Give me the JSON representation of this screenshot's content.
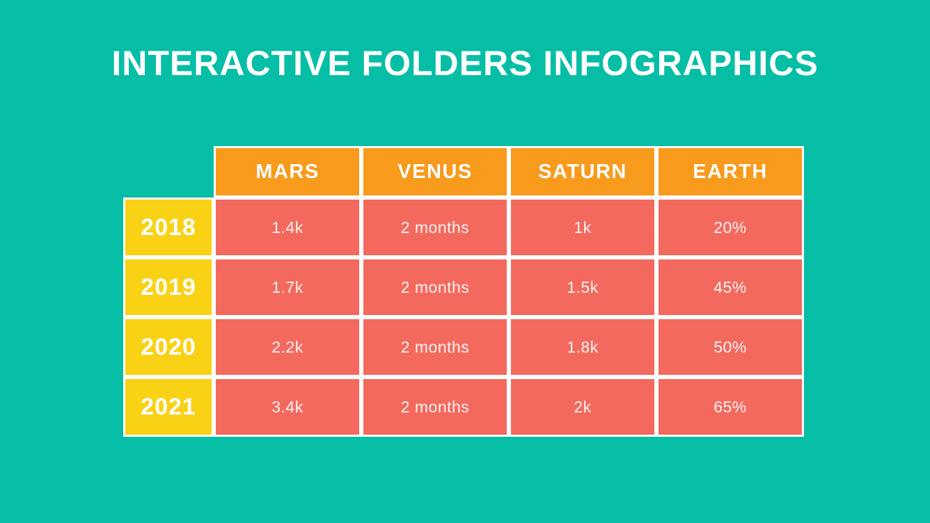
{
  "slide": {
    "title": "INTERACTIVE FOLDERS INFOGRAPHICS"
  },
  "colors": {
    "background_teal": "#06BEA6",
    "header_orange": "#F89A1C",
    "year_yellow": "#F9D115",
    "tile_red": "#F4695E",
    "gutter_white": "#FFFFFF",
    "text_white": "#FFFFFF"
  },
  "chart_data": {
    "type": "table",
    "title": "INTERACTIVE FOLDERS INFOGRAPHICS",
    "columns": [
      "MARS",
      "VENUS",
      "SATURN",
      "EARTH"
    ],
    "row_headers": [
      "2018",
      "2019",
      "2020",
      "2021"
    ],
    "rows": [
      [
        "1.4k",
        "2 months",
        "1k",
        "20%"
      ],
      [
        "1.7k",
        "2 months",
        "1.5k",
        "45%"
      ],
      [
        "2.2k",
        "2 months",
        "1.8k",
        "50%"
      ],
      [
        "3.4k",
        "2 months",
        "2k",
        "65%"
      ]
    ],
    "layout": {
      "legend": "none",
      "grid_gutters": "white",
      "corner_cell": "empty"
    }
  }
}
